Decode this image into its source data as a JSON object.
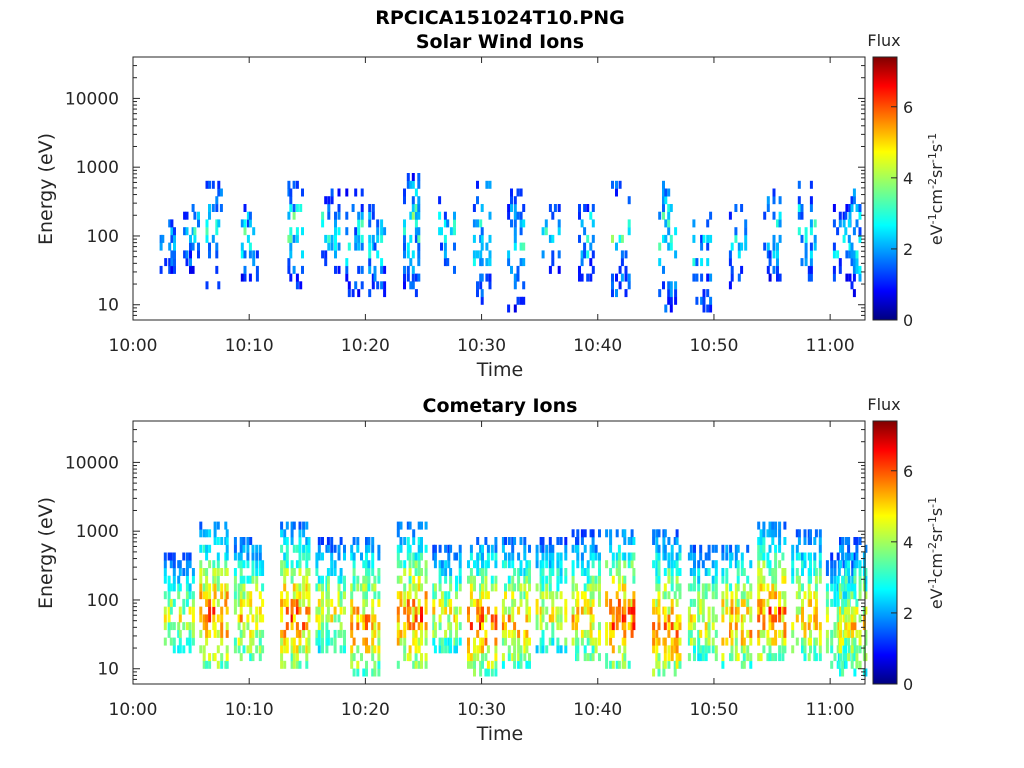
{
  "figure_title": "RPCICA151024T10.PNG",
  "chart_data": [
    {
      "type": "heatmap",
      "title": "Solar Wind Ions",
      "xlabel": "Time",
      "ylabel": "Energy (eV)",
      "y_scale": "log",
      "ylim": [
        6,
        40000
      ],
      "x_ticks": [
        "10:00",
        "10:10",
        "10:20",
        "10:30",
        "10:40",
        "10:50",
        "11:00"
      ],
      "y_ticks": [
        "10",
        "100",
        "1000",
        "10000"
      ],
      "colorbar": {
        "label": "Flux",
        "units": "eV-1cm-2sr-1s-1",
        "range": [
          0,
          7.4
        ],
        "ticks": [
          "0",
          "2",
          "4",
          "6"
        ],
        "colormap": "jet"
      },
      "bursts": [
        {
          "t": "10:03",
          "low": 25,
          "high": 180,
          "peak": 2.6
        },
        {
          "t": "10:05",
          "low": 30,
          "high": 300,
          "peak": 2.9
        },
        {
          "t": "10:07",
          "low": 18,
          "high": 600,
          "peak": 3.4
        },
        {
          "t": "10:10",
          "low": 22,
          "high": 300,
          "peak": 3.0
        },
        {
          "t": "10:14",
          "low": 18,
          "high": 700,
          "peak": 3.3
        },
        {
          "t": "10:17",
          "low": 28,
          "high": 450,
          "peak": 3.0
        },
        {
          "t": "10:19",
          "low": 12,
          "high": 500,
          "peak": 3.0
        },
        {
          "t": "10:21",
          "low": 12,
          "high": 300,
          "peak": 3.0
        },
        {
          "t": "10:24",
          "low": 12,
          "high": 900,
          "peak": 3.3
        },
        {
          "t": "10:27",
          "low": 28,
          "high": 400,
          "peak": 3.0
        },
        {
          "t": "10:30",
          "low": 10,
          "high": 600,
          "peak": 3.2
        },
        {
          "t": "10:33",
          "low": 8,
          "high": 450,
          "peak": 3.0
        },
        {
          "t": "10:36",
          "low": 28,
          "high": 300,
          "peak": 2.8
        },
        {
          "t": "10:39",
          "low": 20,
          "high": 400,
          "peak": 3.0
        },
        {
          "t": "10:42",
          "low": 12,
          "high": 600,
          "peak": 3.4
        },
        {
          "t": "10:46",
          "low": 8,
          "high": 700,
          "peak": 3.4
        },
        {
          "t": "10:49",
          "low": 8,
          "high": 250,
          "peak": 2.8
        },
        {
          "t": "10:52",
          "low": 15,
          "high": 300,
          "peak": 2.8
        },
        {
          "t": "10:55",
          "low": 22,
          "high": 450,
          "peak": 3.0
        },
        {
          "t": "10:58",
          "low": 20,
          "high": 700,
          "peak": 3.2
        },
        {
          "t": "11:01",
          "low": 22,
          "high": 300,
          "peak": 2.8
        },
        {
          "t": "11:02",
          "low": 12,
          "high": 500,
          "peak": 3.0
        }
      ]
    },
    {
      "type": "heatmap",
      "title": "Cometary Ions",
      "xlabel": "Time",
      "ylabel": "Energy (eV)",
      "y_scale": "log",
      "ylim": [
        6,
        40000
      ],
      "x_ticks": [
        "10:00",
        "10:10",
        "10:20",
        "10:30",
        "10:40",
        "10:50",
        "11:00"
      ],
      "y_ticks": [
        "10",
        "100",
        "1000",
        "10000"
      ],
      "colorbar": {
        "label": "Flux",
        "units": "eV-1cm-2sr-1s-1",
        "range": [
          0,
          7.4
        ],
        "ticks": [
          "0",
          "2",
          "4",
          "6"
        ],
        "colormap": "jet"
      },
      "bursts": [
        {
          "t": "10:04",
          "low": 18,
          "high": 500,
          "peak": 4.5
        },
        {
          "t": "10:07",
          "low": 10,
          "high": 1500,
          "peak": 5.8
        },
        {
          "t": "10:10",
          "low": 12,
          "high": 900,
          "peak": 5.2
        },
        {
          "t": "10:14",
          "low": 10,
          "high": 1500,
          "peak": 5.8
        },
        {
          "t": "10:17",
          "low": 18,
          "high": 800,
          "peak": 4.8
        },
        {
          "t": "10:20",
          "low": 8,
          "high": 900,
          "peak": 5.6
        },
        {
          "t": "10:24",
          "low": 10,
          "high": 1500,
          "peak": 5.8
        },
        {
          "t": "10:27",
          "low": 18,
          "high": 700,
          "peak": 4.8
        },
        {
          "t": "10:30",
          "low": 8,
          "high": 900,
          "peak": 5.9
        },
        {
          "t": "10:33",
          "low": 10,
          "high": 900,
          "peak": 5.4
        },
        {
          "t": "10:36",
          "low": 18,
          "high": 800,
          "peak": 4.8
        },
        {
          "t": "10:39",
          "low": 12,
          "high": 1000,
          "peak": 5.0
        },
        {
          "t": "10:42",
          "low": 10,
          "high": 1200,
          "peak": 6.0
        },
        {
          "t": "10:46",
          "low": 7,
          "high": 1000,
          "peak": 5.8
        },
        {
          "t": "10:49",
          "low": 12,
          "high": 700,
          "peak": 4.8
        },
        {
          "t": "10:52",
          "low": 10,
          "high": 700,
          "peak": 5.6
        },
        {
          "t": "10:55",
          "low": 12,
          "high": 1500,
          "peak": 5.9
        },
        {
          "t": "10:58",
          "low": 12,
          "high": 1100,
          "peak": 5.2
        },
        {
          "t": "11:01",
          "low": 10,
          "high": 500,
          "peak": 4.6
        },
        {
          "t": "11:02",
          "low": 8,
          "high": 900,
          "peak": 5.0
        }
      ]
    }
  ]
}
